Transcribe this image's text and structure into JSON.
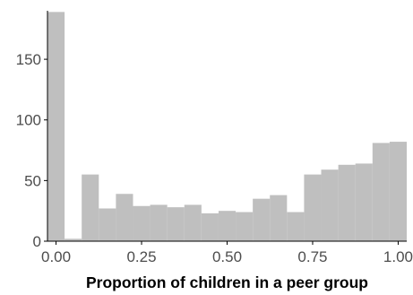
{
  "chart_data": {
    "type": "bar",
    "title": "",
    "xlabel": "Proportion of children in a peer group",
    "ylabel": "",
    "xlim": [
      -0.025,
      1.025
    ],
    "ylim": [
      0,
      190
    ],
    "bin_width": 0.05,
    "bins": [
      {
        "x0": -0.025,
        "x1": 0.025,
        "count": 189
      },
      {
        "x0": 0.025,
        "x1": 0.075,
        "count": 2
      },
      {
        "x0": 0.075,
        "x1": 0.125,
        "count": 55
      },
      {
        "x0": 0.125,
        "x1": 0.175,
        "count": 27
      },
      {
        "x0": 0.175,
        "x1": 0.225,
        "count": 39
      },
      {
        "x0": 0.225,
        "x1": 0.275,
        "count": 29
      },
      {
        "x0": 0.275,
        "x1": 0.325,
        "count": 30
      },
      {
        "x0": 0.325,
        "x1": 0.375,
        "count": 28
      },
      {
        "x0": 0.375,
        "x1": 0.425,
        "count": 30
      },
      {
        "x0": 0.425,
        "x1": 0.475,
        "count": 23
      },
      {
        "x0": 0.475,
        "x1": 0.525,
        "count": 25
      },
      {
        "x0": 0.525,
        "x1": 0.575,
        "count": 24
      },
      {
        "x0": 0.575,
        "x1": 0.625,
        "count": 35
      },
      {
        "x0": 0.625,
        "x1": 0.675,
        "count": 38
      },
      {
        "x0": 0.675,
        "x1": 0.725,
        "count": 24
      },
      {
        "x0": 0.725,
        "x1": 0.775,
        "count": 55
      },
      {
        "x0": 0.775,
        "x1": 0.825,
        "count": 59
      },
      {
        "x0": 0.825,
        "x1": 0.875,
        "count": 63
      },
      {
        "x0": 0.875,
        "x1": 0.925,
        "count": 64
      },
      {
        "x0": 0.925,
        "x1": 0.975,
        "count": 81
      },
      {
        "x0": 0.975,
        "x1": 1.025,
        "count": 82
      }
    ],
    "x_ticks": [
      {
        "value": 0,
        "label": "0.00"
      },
      {
        "value": 0.25,
        "label": "0.25"
      },
      {
        "value": 0.5,
        "label": "0.50"
      },
      {
        "value": 0.75,
        "label": "0.75"
      },
      {
        "value": 1,
        "label": "1.00"
      }
    ],
    "y_ticks": [
      {
        "value": 0,
        "label": "0"
      },
      {
        "value": 50,
        "label": "50"
      },
      {
        "value": 100,
        "label": "100"
      },
      {
        "value": 150,
        "label": "150"
      }
    ],
    "grid": false,
    "legend": "none",
    "bar_color": "#bfbfbf",
    "axis_color": "#000000",
    "tick_label_color": "#4d4d4d"
  }
}
